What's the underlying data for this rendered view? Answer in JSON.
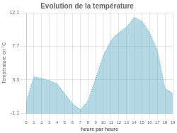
{
  "chart_data": {
    "type": "area",
    "title": "Evolution de la température",
    "xlabel": "heure par heure",
    "ylabel": "Température en °C",
    "x": [
      0,
      1,
      2,
      3,
      4,
      5,
      6,
      7,
      8,
      9,
      10,
      11,
      12,
      13,
      14,
      15,
      16,
      17,
      18,
      19
    ],
    "values": [
      0.5,
      3.7,
      3.5,
      3.2,
      2.8,
      1.5,
      0.2,
      -0.6,
      0.5,
      3.5,
      6.5,
      8.5,
      9.5,
      10.2,
      11.5,
      11.0,
      9.5,
      7.2,
      2.2,
      1.5
    ],
    "color": "#6ab4cc",
    "line_style": "dotted",
    "xlim": [
      0,
      19
    ],
    "xticks": [
      0,
      1,
      2,
      3,
      4,
      5,
      6,
      7,
      8,
      9,
      10,
      11,
      12,
      13,
      14,
      15,
      16,
      17,
      18,
      19
    ],
    "ylim": [
      -1.1,
      12.1
    ],
    "yticks": [
      -1.1,
      3.3,
      7.7,
      12.1
    ],
    "grid": true
  }
}
